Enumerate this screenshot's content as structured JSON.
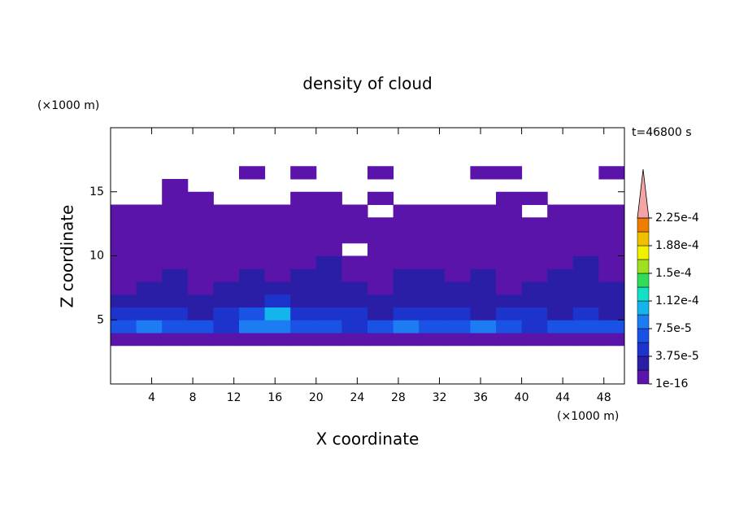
{
  "chart_data": {
    "type": "contour",
    "title": "density of cloud",
    "time_label": "t=46800 s",
    "xlabel": "X coordinate",
    "ylabel": "Z coordinate",
    "x_unit": "(×1000 m)",
    "y_unit": "(×1000 m)",
    "xlim": [
      0,
      50
    ],
    "ylim": [
      0,
      20
    ],
    "xticks": [
      4,
      8,
      12,
      16,
      20,
      24,
      28,
      32,
      36,
      40,
      44,
      48
    ],
    "yticks": [
      5,
      10,
      15
    ],
    "levels": [
      1e-16,
      1.875e-05,
      3.75e-05,
      5.625e-05,
      7.5e-05,
      9.375e-05,
      0.0001125,
      0.00013125,
      0.00015,
      0.00016875,
      0.0001875,
      0.00020625,
      0.000225
    ],
    "level_labels": [
      {
        "value": 1e-16,
        "label": "1e-16"
      },
      {
        "value": 3.75e-05,
        "label": "3.75e-5"
      },
      {
        "value": 7.5e-05,
        "label": "7.5e-5"
      },
      {
        "value": 0.0001125,
        "label": "1.12e-4"
      },
      {
        "value": 0.00015,
        "label": "1.5e-4"
      },
      {
        "value": 0.0001875,
        "label": "1.88e-4"
      },
      {
        "value": 0.000225,
        "label": "2.25e-4"
      }
    ],
    "colors": [
      "#5a14aa",
      "#2a1ea6",
      "#1c34cc",
      "#1a52e6",
      "#1e7cf2",
      "#14b4ec",
      "#14e0c8",
      "#30dc5a",
      "#a0e020",
      "#f0f000",
      "#f0c000",
      "#f07c00",
      "#e82814"
    ],
    "extend_color": "#f4a4a4",
    "x": [
      1.25,
      3.75,
      6.25,
      8.75,
      11.25,
      13.75,
      16.25,
      18.75,
      21.25,
      23.75,
      26.25,
      28.75,
      31.25,
      33.75,
      36.25,
      38.75,
      41.25,
      43.75,
      46.25,
      48.75
    ],
    "z": [
      3.5,
      4.5,
      5.5,
      6.5,
      7.5,
      8.5,
      9.5,
      10.5,
      11.5,
      12.5,
      13.5,
      14.5,
      15.5,
      16.5
    ],
    "values": [
      [
        1e-05,
        1e-05,
        1e-05,
        1e-05,
        1e-05,
        1e-05,
        1e-05,
        1e-05,
        1e-05,
        1e-05,
        1e-05,
        1e-05,
        1e-05,
        1e-05,
        1e-05,
        1e-05,
        1e-05,
        1e-05,
        1e-05,
        1e-05
      ],
      [
        6e-05,
        8e-05,
        7e-05,
        6e-05,
        5e-05,
        8e-05,
        9e-05,
        6e-05,
        7e-05,
        5e-05,
        6e-05,
        8e-05,
        6e-05,
        7e-05,
        8e-05,
        6e-05,
        5e-05,
        7e-05,
        6e-05,
        7e-05
      ],
      [
        4e-05,
        5e-05,
        4e-05,
        3e-05,
        4e-05,
        6e-05,
        0.00011,
        5e-05,
        4e-05,
        4e-05,
        3e-05,
        4e-05,
        5e-05,
        4e-05,
        3e-05,
        4e-05,
        4e-05,
        3e-05,
        4e-05,
        3e-05
      ],
      [
        3e-05,
        3e-05,
        2.5e-05,
        2e-05,
        2.5e-05,
        3e-05,
        4e-05,
        3e-05,
        2.5e-05,
        3e-05,
        2.5e-05,
        2e-05,
        3e-05,
        2.5e-05,
        2e-05,
        2.5e-05,
        3e-05,
        2e-05,
        2.5e-05,
        2e-05
      ],
      [
        1.5e-05,
        2e-05,
        2e-05,
        1.5e-05,
        2e-05,
        2.5e-05,
        2e-05,
        2.5e-05,
        2e-05,
        2e-05,
        1.5e-05,
        2e-05,
        2.5e-05,
        2e-05,
        2e-05,
        1.5e-05,
        2e-05,
        2e-05,
        2e-05,
        2e-05
      ],
      [
        1.5e-05,
        1.5e-05,
        2e-05,
        1.5e-05,
        1.5e-05,
        2e-05,
        1.5e-05,
        2e-05,
        2e-05,
        1.5e-05,
        1.5e-05,
        2e-05,
        2e-05,
        1.5e-05,
        2e-05,
        1.5e-05,
        1.5e-05,
        2e-05,
        2e-05,
        1.5e-05
      ],
      [
        1.5e-05,
        1.5e-05,
        1.5e-05,
        1.5e-05,
        1.5e-05,
        1.5e-05,
        1.5e-05,
        1.5e-05,
        2e-05,
        1.5e-05,
        1.5e-05,
        1.5e-05,
        1.5e-05,
        1.5e-05,
        1.5e-05,
        1.5e-05,
        1.5e-05,
        1.5e-05,
        2e-05,
        1.5e-05
      ],
      [
        1.5e-05,
        1e-05,
        1.5e-05,
        1.5e-05,
        1e-05,
        1.5e-05,
        1e-05,
        1.5e-05,
        1e-05,
        null,
        1e-05,
        1.5e-05,
        1.5e-05,
        1e-05,
        1.5e-05,
        1e-05,
        1.5e-05,
        1e-05,
        1.5e-05,
        1e-05
      ],
      [
        1e-05,
        1e-05,
        1e-05,
        1e-05,
        1e-05,
        1e-05,
        1e-05,
        1e-05,
        1e-05,
        1e-05,
        1e-05,
        1e-05,
        1e-05,
        1e-05,
        1e-05,
        1e-05,
        1e-05,
        1e-05,
        1e-05,
        1e-05
      ],
      [
        1e-05,
        1e-05,
        1e-05,
        1e-05,
        1e-05,
        1e-05,
        1e-05,
        1e-05,
        1e-05,
        1e-05,
        1e-05,
        1e-05,
        1e-05,
        1e-05,
        1e-05,
        1e-05,
        1e-05,
        1e-05,
        1e-05,
        1e-05
      ],
      [
        1e-05,
        1e-05,
        1e-05,
        1e-05,
        1e-05,
        1e-05,
        1e-05,
        1e-05,
        1e-05,
        1e-05,
        null,
        1e-05,
        1e-05,
        1e-05,
        1e-05,
        1e-05,
        null,
        1e-05,
        1e-05,
        1e-05
      ],
      [
        null,
        null,
        1e-05,
        1e-05,
        null,
        null,
        null,
        1e-05,
        1e-05,
        null,
        1e-05,
        null,
        null,
        null,
        null,
        1e-05,
        1e-05,
        null,
        null,
        null
      ],
      [
        null,
        null,
        1e-05,
        null,
        null,
        null,
        null,
        null,
        null,
        null,
        null,
        null,
        null,
        null,
        null,
        null,
        null,
        null,
        null,
        null
      ],
      [
        null,
        null,
        null,
        null,
        null,
        1e-05,
        null,
        1e-05,
        null,
        null,
        1e-05,
        null,
        null,
        null,
        1e-05,
        1e-05,
        null,
        null,
        null,
        1e-05
      ]
    ]
  }
}
